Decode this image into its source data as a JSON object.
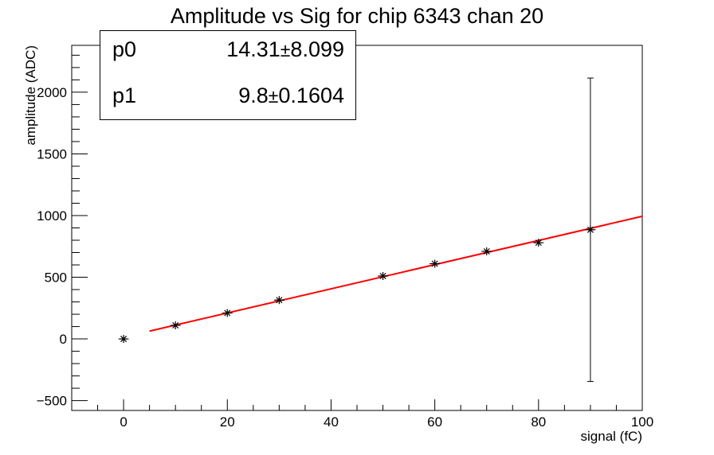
{
  "chart_data": {
    "type": "scatter",
    "title": "Amplitude vs Sig for chip 6343 chan 20",
    "xlabel": "signal (fC)",
    "ylabel": "amplitude (ADC)",
    "xlim": [
      -10,
      100
    ],
    "ylim": [
      -580,
      2380
    ],
    "x_ticks": [
      0,
      20,
      40,
      60,
      80,
      100
    ],
    "y_ticks": [
      -500,
      0,
      500,
      1000,
      1500,
      2000
    ],
    "grid": false,
    "series": [
      {
        "marker": "asterisk",
        "color": "#000000",
        "points": [
          {
            "x": 0,
            "y": 0,
            "xerr": 1,
            "yerr": 0
          },
          {
            "x": 10,
            "y": 110,
            "xerr": 1,
            "yerr": 0
          },
          {
            "x": 20,
            "y": 210,
            "xerr": 1,
            "yerr": 0
          },
          {
            "x": 30,
            "y": 315,
            "xerr": 1,
            "yerr": 0
          },
          {
            "x": 50,
            "y": 510,
            "xerr": 1,
            "yerr": 0
          },
          {
            "x": 60,
            "y": 610,
            "xerr": 1,
            "yerr": 0
          },
          {
            "x": 70,
            "y": 710,
            "xerr": 1,
            "yerr": 0
          },
          {
            "x": 80,
            "y": 780,
            "xerr": 1,
            "yerr": 0
          },
          {
            "x": 90,
            "y": 885,
            "xerr": 1,
            "yerr_low": 1230,
            "yerr_high": 1230
          }
        ]
      }
    ],
    "fit": {
      "color": "#ff0000",
      "x_range": [
        5,
        100
      ],
      "p0": 14.31,
      "p1": 9.8
    },
    "stats": [
      {
        "name": "p0",
        "value": "14.31",
        "pm": "±",
        "error": "8.099"
      },
      {
        "name": "p1",
        "value": "9.8",
        "pm": "±",
        "error": "0.1604"
      }
    ]
  }
}
